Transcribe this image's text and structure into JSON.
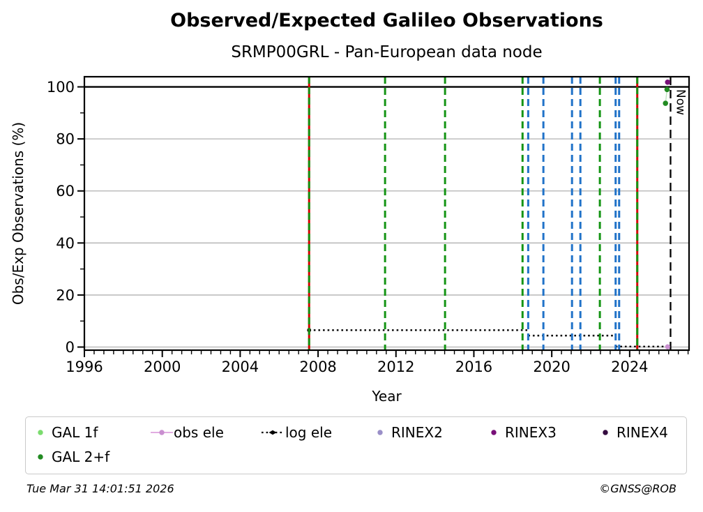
{
  "chart_data": {
    "type": "scatter",
    "title": "Observed/Expected Galileo Observations",
    "subtitle": "SRMP00GRL - Pan-European data node",
    "xlabel": "Year",
    "ylabel": "Obs/Exp Observations (%)",
    "xlim": [
      1996,
      2027.05
    ],
    "ylim": [
      -1.2,
      103.9
    ],
    "x_major_ticks": [
      1996,
      2000,
      2004,
      2008,
      2012,
      2016,
      2020,
      2024
    ],
    "x_minor_tick_step": 0.5,
    "y_major_ticks": [
      0,
      20,
      40,
      60,
      80,
      100
    ],
    "y_minor_ticks": [
      10,
      30,
      50,
      70,
      90
    ],
    "grid": {
      "horizontal": true,
      "vertical": false,
      "color": "#b0b0b0"
    },
    "hline": {
      "y": 100,
      "color": "#000000"
    },
    "now_line": {
      "x": 2026.1,
      "label": "Now",
      "style": "dashed",
      "color": "#000000"
    },
    "event_lines": [
      {
        "x": 2007.54,
        "style": "solid+dashed",
        "solid_color": "#d40000",
        "dash_color": "#149414"
      },
      {
        "x": 2011.44,
        "style": "dashed",
        "color": "#149414"
      },
      {
        "x": 2014.52,
        "style": "dashed",
        "color": "#149414"
      },
      {
        "x": 2018.5,
        "style": "dashed",
        "color": "#149414"
      },
      {
        "x": 2018.79,
        "style": "dashed",
        "color": "#2072c8"
      },
      {
        "x": 2019.57,
        "style": "dashed",
        "color": "#2072c8"
      },
      {
        "x": 2021.04,
        "style": "dashed",
        "color": "#2072c8"
      },
      {
        "x": 2021.47,
        "style": "dashed",
        "color": "#2072c8"
      },
      {
        "x": 2022.47,
        "style": "dashed",
        "color": "#149414"
      },
      {
        "x": 2023.28,
        "style": "dashed",
        "color": "#2072c8"
      },
      {
        "x": 2023.46,
        "style": "dashed",
        "color": "#2072c8"
      },
      {
        "x": 2024.39,
        "style": "solid+dashed",
        "solid_color": "#d40000",
        "dash_color": "#149414"
      }
    ],
    "log_ele_steps": [
      {
        "x1": 2007.54,
        "x2": 2018.79,
        "y": 6.5
      },
      {
        "x1": 2018.79,
        "x2": 2023.28,
        "y": 4.4
      },
      {
        "x1": 2023.28,
        "x2": 2025.95,
        "y": 0.2
      }
    ],
    "points": [
      {
        "series": "RINEX3",
        "x": 2025.95,
        "y": 101.8,
        "color": "#780f78",
        "r": 3.8
      },
      {
        "series": "GAL 2+f",
        "x": 2025.92,
        "y": 99.0,
        "color": "#228b22",
        "r": 3.8
      },
      {
        "series": "GAL 2+f",
        "x": 2025.84,
        "y": 93.7,
        "color": "#228b22",
        "r": 3.8
      },
      {
        "series": "obs ele",
        "x": 2025.95,
        "y": 0.1,
        "color": "#c98fd0",
        "r": 3.6
      }
    ],
    "connector": {
      "series": "GAL 2+f",
      "x1": 2025.92,
      "y1": 99.0,
      "x2": 2025.84,
      "y2": 93.7,
      "color": "#bfe3bf"
    }
  },
  "legend": {
    "items": [
      {
        "id": "gal1f",
        "label": "GAL 1f",
        "marker": "dot",
        "color": "#7bdc6e"
      },
      {
        "id": "gal2f",
        "label": "GAL 2+f",
        "marker": "dot",
        "color": "#228b22"
      },
      {
        "id": "obs_ele",
        "label": "obs ele",
        "marker": "line-dot",
        "color": "#dda0dd",
        "dot_color": "#c98fd0"
      },
      {
        "id": "log_ele",
        "label": "log ele",
        "marker": "dotted-line-dot",
        "color": "#000000"
      },
      {
        "id": "rinex2",
        "label": "RINEX2",
        "marker": "dot",
        "color": "#9a8fc8"
      },
      {
        "id": "rinex3",
        "label": "RINEX3",
        "marker": "dot",
        "color": "#780f78"
      },
      {
        "id": "rinex4",
        "label": "RINEX4",
        "marker": "dot",
        "color": "#340b3f"
      }
    ]
  },
  "footer": {
    "timestamp": "Tue Mar 31 14:01:51 2026",
    "credit": "©GNSS@ROB"
  }
}
